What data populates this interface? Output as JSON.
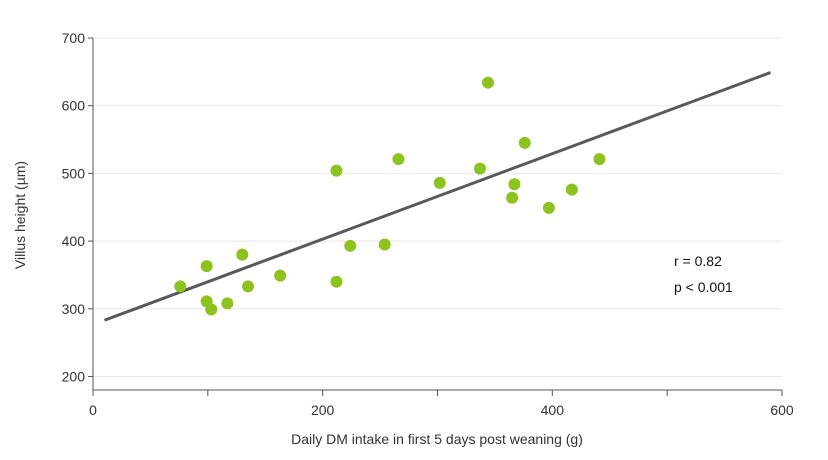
{
  "chart_data": {
    "type": "scatter",
    "xlabel": "Daily DM intake in first 5 days post weaning (g)",
    "ylabel": "Villus height (µm)",
    "xlim": [
      0,
      600
    ],
    "ylim": [
      180,
      700
    ],
    "x_ticks": [
      0,
      100,
      200,
      300,
      400,
      500,
      600
    ],
    "x_tick_labels": [
      "0",
      "",
      "200",
      "",
      "400",
      "",
      "600"
    ],
    "y_ticks": [
      200,
      300,
      400,
      500,
      600,
      700
    ],
    "y_tick_labels": [
      "200",
      "300",
      "400",
      "500",
      "600",
      "700"
    ],
    "grid": "horizontal",
    "point_color": "#8dc21f",
    "line_color": "#595959",
    "points": [
      {
        "x": 76,
        "y": 333
      },
      {
        "x": 99,
        "y": 363
      },
      {
        "x": 99,
        "y": 311
      },
      {
        "x": 103,
        "y": 299
      },
      {
        "x": 117,
        "y": 308
      },
      {
        "x": 130,
        "y": 380
      },
      {
        "x": 135,
        "y": 333
      },
      {
        "x": 163,
        "y": 349
      },
      {
        "x": 212,
        "y": 504
      },
      {
        "x": 212,
        "y": 340
      },
      {
        "x": 224,
        "y": 393
      },
      {
        "x": 254,
        "y": 395
      },
      {
        "x": 266,
        "y": 521
      },
      {
        "x": 302,
        "y": 486
      },
      {
        "x": 337,
        "y": 507
      },
      {
        "x": 344,
        "y": 634
      },
      {
        "x": 365,
        "y": 464
      },
      {
        "x": 367,
        "y": 484
      },
      {
        "x": 376,
        "y": 545
      },
      {
        "x": 397,
        "y": 449
      },
      {
        "x": 417,
        "y": 476
      },
      {
        "x": 441,
        "y": 521
      }
    ],
    "trend_line": {
      "x": [
        10,
        590
      ],
      "y": [
        283,
        649
      ]
    },
    "annotations": {
      "r": "r = 0.82",
      "p": "p < 0.001"
    }
  }
}
